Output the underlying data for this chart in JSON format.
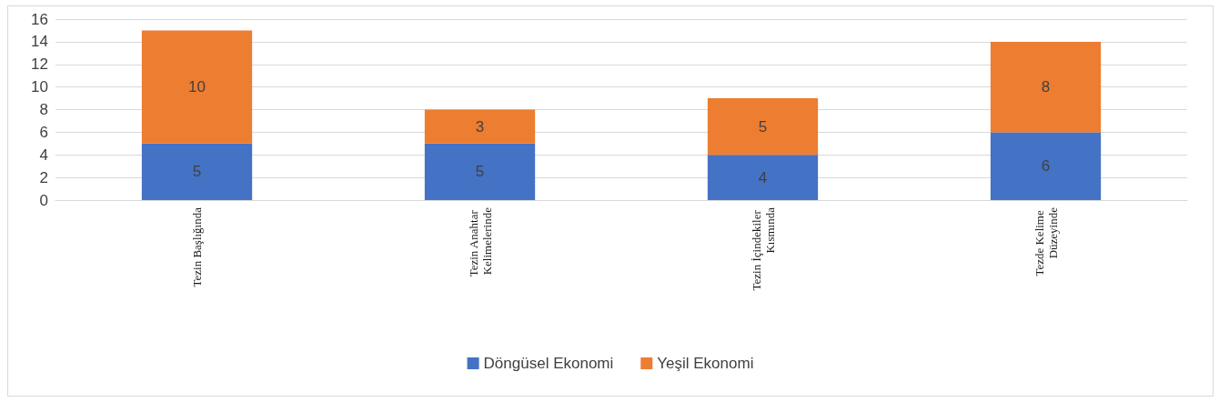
{
  "chart_data": {
    "type": "bar",
    "stacked": true,
    "categories": [
      "Tezin Başlığında",
      "Tezin Anahtar Kelimelerinde",
      "Tezin İçindekiler Kısmında",
      "Tezde Kelime Düzeyinde"
    ],
    "series": [
      {
        "name": "Döngüsel Ekonomi",
        "color": "#4472c4",
        "values": [
          5,
          5,
          4,
          6
        ]
      },
      {
        "name": "Yeşil Ekonomi",
        "color": "#ed7d31",
        "values": [
          10,
          3,
          5,
          8
        ]
      }
    ],
    "ylim": [
      0,
      16
    ],
    "yticks": [
      0,
      2,
      4,
      6,
      8,
      10,
      12,
      14,
      16
    ],
    "grid": "y",
    "legend": "bottom",
    "data_labels": true
  }
}
